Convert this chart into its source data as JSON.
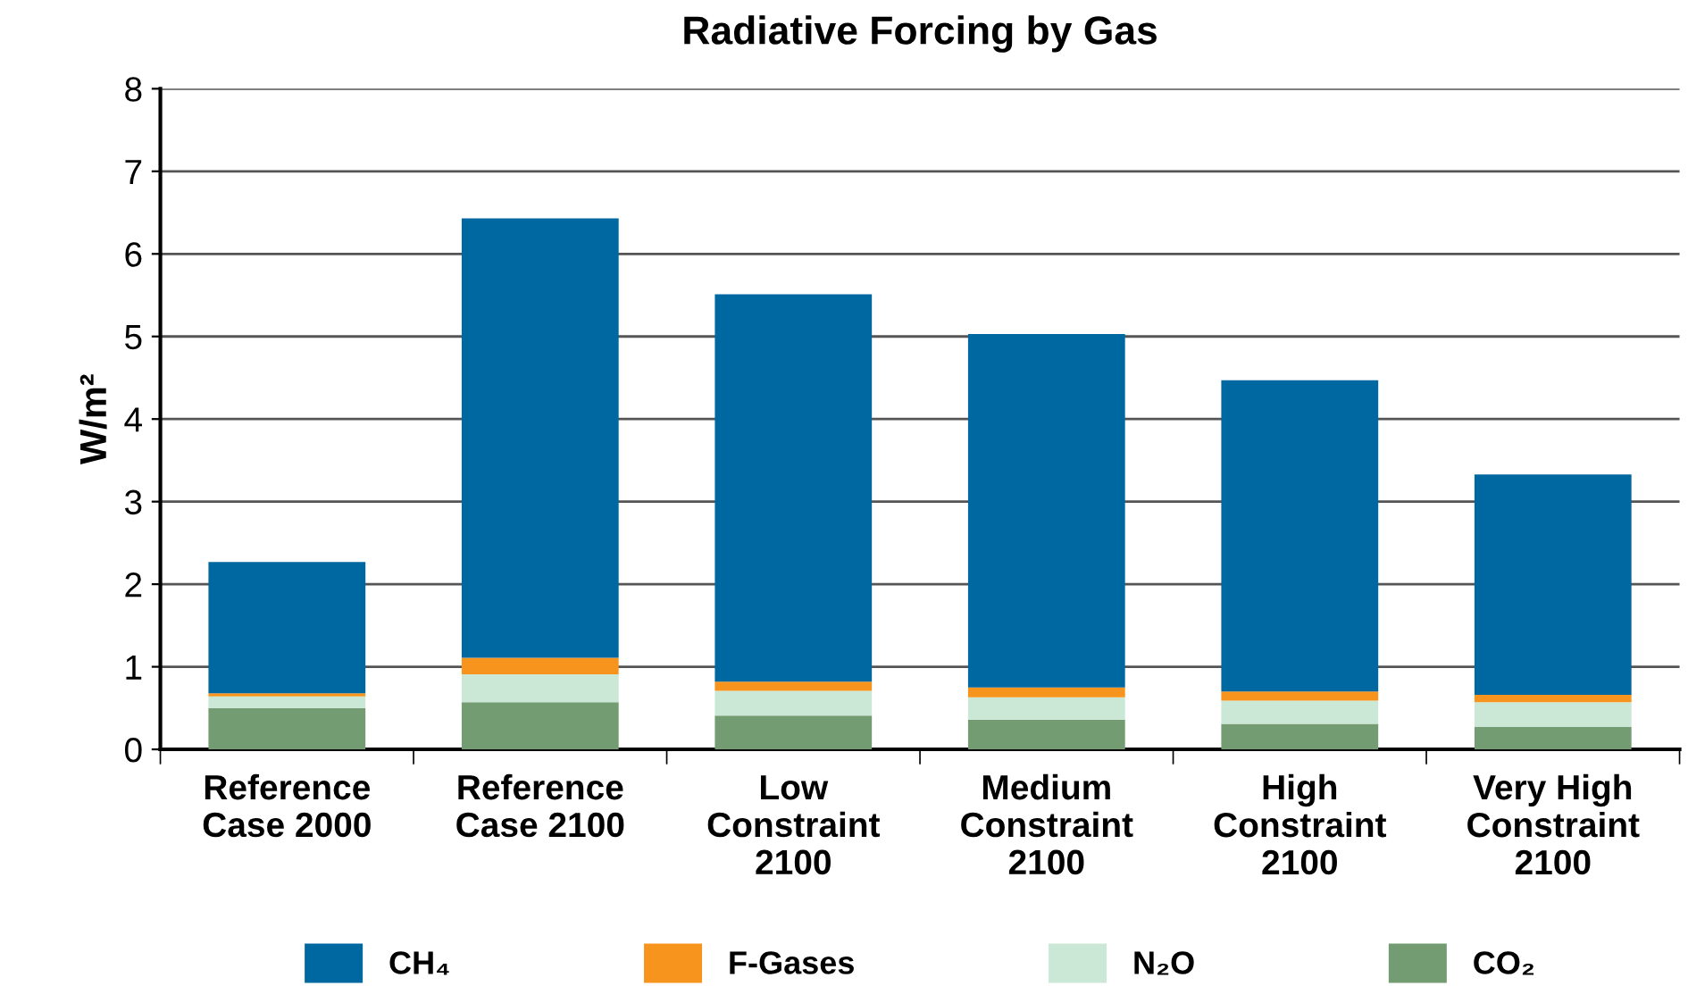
{
  "chart_data": {
    "type": "bar",
    "title": "Radiative Forcing by Gas",
    "ylabel": "W/m²",
    "categories": [
      "Reference\nCase 2000",
      "Reference\nCase 2100",
      "Low\nConstraint\n2100",
      "Medium\nConstraint\n2100",
      "High\nConstraint\n2100",
      "Very High\nConstraint\n2100"
    ],
    "stacked": true,
    "series": [
      {
        "name": "CO₂",
        "color": "#739c73",
        "values": [
          0.5,
          0.57,
          0.41,
          0.36,
          0.31,
          0.27
        ]
      },
      {
        "name": "N₂O",
        "color": "#cbe7d6",
        "values": [
          0.14,
          0.34,
          0.3,
          0.27,
          0.28,
          0.3
        ]
      },
      {
        "name": "F-Gases",
        "color": "#f7941d",
        "values": [
          0.04,
          0.2,
          0.11,
          0.12,
          0.11,
          0.09
        ]
      },
      {
        "name": "CH₄",
        "color": "#0068a0",
        "values": [
          1.59,
          5.32,
          4.69,
          4.28,
          3.77,
          2.67
        ]
      }
    ],
    "ylim": [
      0,
      8
    ],
    "yticks": [
      0,
      1,
      2,
      3,
      4,
      5,
      6,
      7,
      8
    ],
    "grid": "y",
    "legend": "bottom"
  }
}
